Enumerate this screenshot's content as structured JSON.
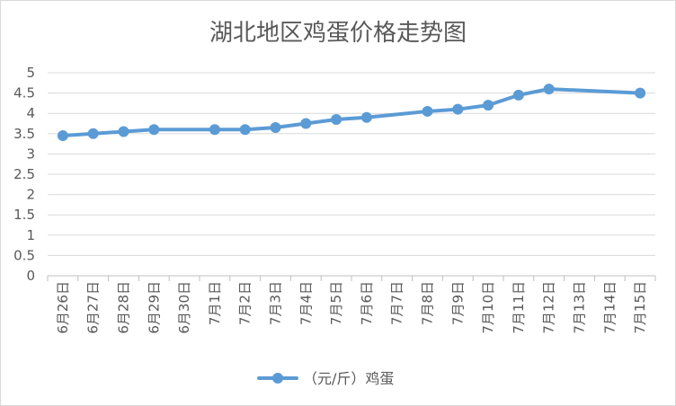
{
  "chart_data": {
    "type": "line",
    "title": "湖北地区鸡蛋价格走势图",
    "categories": [
      "6月26日",
      "6月27日",
      "6月28日",
      "6月29日",
      "6月30日",
      "7月1日",
      "7月2日",
      "7月3日",
      "7月4日",
      "7月5日",
      "7月6日",
      "7月7日",
      "7月8日",
      "7月9日",
      "7月10日",
      "7月11日",
      "7月12日",
      "7月13日",
      "7月14日",
      "7月15日"
    ],
    "series": [
      {
        "name": "（元/斤）鸡蛋",
        "color": "#5b9bd5",
        "values": [
          3.45,
          3.5,
          3.55,
          3.6,
          null,
          3.6,
          3.6,
          3.65,
          3.75,
          3.85,
          3.9,
          null,
          4.05,
          4.1,
          4.2,
          4.45,
          4.6,
          null,
          null,
          4.5
        ]
      }
    ],
    "ylim": [
      0,
      5
    ],
    "yticks": [
      "0",
      "0.5",
      "1",
      "1.5",
      "2",
      "2.5",
      "3",
      "3.5",
      "4",
      "4.5",
      "5"
    ],
    "grid": true,
    "legend_position": "bottom"
  }
}
